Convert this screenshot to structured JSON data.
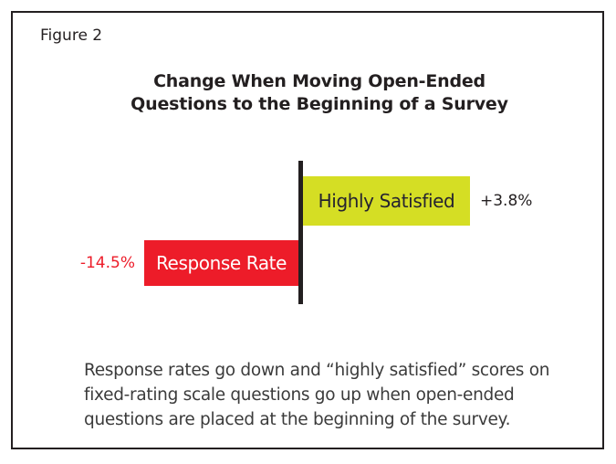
{
  "figure_label": "Figure 2",
  "title": {
    "line1": "Change When Moving Open-Ended",
    "line2": "Questions to the Beginning of a Survey"
  },
  "chart": {
    "positive": {
      "label": "Highly Satisfied",
      "value_label": "+3.8%",
      "bar_color": "#d5de24",
      "label_color": "#252330",
      "value_label_color": "#231f20"
    },
    "negative": {
      "label": "Response Rate",
      "value_label": "-14.5%",
      "bar_color": "#ed1c29",
      "label_color": "#ffffff",
      "value_label_color": "#ed1c29"
    },
    "axis_color": "#231f20"
  },
  "caption": {
    "line1": "Response rates go down and “highly satisfied” scores on",
    "line2": "fixed-rating scale questions go up when open-ended",
    "line3": "questions are placed at the beginning of the survey."
  },
  "chart_data": {
    "type": "bar",
    "orientation": "horizontal",
    "title": "Change When Moving Open-Ended Questions to the Beginning of a Survey",
    "categories": [
      "Highly Satisfied",
      "Response Rate"
    ],
    "values": [
      3.8,
      -14.5
    ],
    "value_labels": [
      "+3.8%",
      "-14.5%"
    ],
    "unit": "%",
    "baseline": 0,
    "colors": {
      "Highly Satisfied": "#d5de24",
      "Response Rate": "#ed1c29"
    },
    "legend": false,
    "grid": false,
    "axes_labeled": false,
    "note": "Bars diverge from a vertical zero baseline; positive bar extends right, negative bar extends left"
  },
  "colors": {
    "frame_border": "#231f20",
    "title_text": "#231f20",
    "caption_text": "#3b3b3b",
    "background": "#ffffff"
  }
}
